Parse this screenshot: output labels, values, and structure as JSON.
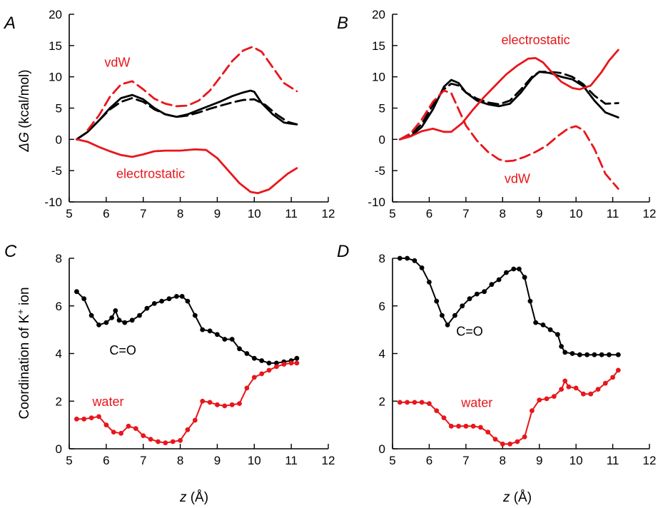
{
  "colors": {
    "black": "#000000",
    "red": "#e8161b"
  },
  "figure": {
    "ylabel_top": "ΔG (kcal/mol)",
    "ylabel_top_symbol": "ΔG",
    "ylabel_top_unit": " (kcal/mol)",
    "ylabel_bottom": "Coordination of K⁺ ion",
    "ylabel_bottom_main": "Coordination of K",
    "ylabel_bottom_sup": "+",
    "ylabel_bottom_tail": " ion",
    "xlabel": "z (Å)",
    "xlabel_symbol": "z",
    "xlabel_unit": " (Å)"
  },
  "chart_data": [
    {
      "panel": "A",
      "type": "line",
      "xlim": [
        5,
        12
      ],
      "ylim": [
        -10,
        20
      ],
      "xticks": [
        5,
        6,
        7,
        8,
        9,
        10,
        11,
        12
      ],
      "yticks": [
        -10,
        -5,
        0,
        5,
        10,
        15,
        20
      ],
      "annotations": [
        {
          "text": "vdW",
          "x": 6.3,
          "y": 11.6,
          "color": "#e8161b"
        },
        {
          "text": "electrostatic",
          "x": 7.2,
          "y": -6.2,
          "color": "#e8161b"
        }
      ],
      "series": [
        {
          "color": "#000000",
          "dash": "solid",
          "x": [
            5.2,
            5.5,
            5.8,
            6.1,
            6.4,
            6.7,
            7.0,
            7.3,
            7.6,
            7.9,
            8.2,
            8.5,
            8.8,
            9.1,
            9.4,
            9.7,
            9.9,
            10.0,
            10.2,
            10.5,
            10.8,
            11.0,
            11.15
          ],
          "y": [
            0,
            1.2,
            3.0,
            5.0,
            6.6,
            7.1,
            6.4,
            5.0,
            4.0,
            3.6,
            4.0,
            4.7,
            5.4,
            6.1,
            6.9,
            7.5,
            7.8,
            7.6,
            5.8,
            4.0,
            2.7,
            2.5,
            2.4
          ]
        },
        {
          "color": "#000000",
          "dash": "dashed",
          "x": [
            5.2,
            5.5,
            5.8,
            6.1,
            6.4,
            6.7,
            7.0,
            7.3,
            7.6,
            7.9,
            8.2,
            8.5,
            8.8,
            9.1,
            9.4,
            9.7,
            10.0,
            10.3,
            10.6,
            10.9,
            11.15
          ],
          "y": [
            0,
            1.2,
            3.0,
            4.8,
            6.0,
            6.6,
            6.0,
            4.8,
            4.0,
            3.6,
            3.8,
            4.3,
            4.9,
            5.4,
            5.9,
            6.3,
            6.4,
            5.5,
            4.0,
            2.8,
            2.4
          ]
        },
        {
          "color": "#e8161b",
          "dash": "dashed",
          "x": [
            5.5,
            5.8,
            6.1,
            6.4,
            6.7,
            7.0,
            7.3,
            7.6,
            7.9,
            8.2,
            8.5,
            8.8,
            9.1,
            9.4,
            9.7,
            9.95,
            10.2,
            10.5,
            10.8,
            11.15
          ],
          "y": [
            1.5,
            3.8,
            6.8,
            8.8,
            9.3,
            8.0,
            6.5,
            5.7,
            5.3,
            5.4,
            6.2,
            7.8,
            10.1,
            12.5,
            14.2,
            14.8,
            14.0,
            11.5,
            9.0,
            7.7
          ]
        },
        {
          "color": "#e8161b",
          "dash": "solid",
          "x": [
            5.2,
            5.5,
            5.8,
            6.1,
            6.4,
            6.7,
            7.0,
            7.3,
            7.6,
            8.0,
            8.4,
            8.7,
            9.0,
            9.3,
            9.6,
            9.9,
            10.1,
            10.4,
            10.7,
            10.9,
            11.15
          ],
          "y": [
            0,
            -0.4,
            -1.2,
            -1.9,
            -2.5,
            -2.8,
            -2.4,
            -1.9,
            -1.8,
            -1.8,
            -1.6,
            -1.7,
            -3.0,
            -5.0,
            -7.0,
            -8.4,
            -8.6,
            -8.0,
            -6.5,
            -5.5,
            -4.6
          ]
        }
      ]
    },
    {
      "panel": "B",
      "type": "line",
      "xlim": [
        5,
        12
      ],
      "ylim": [
        -10,
        20
      ],
      "xticks": [
        5,
        6,
        7,
        8,
        9,
        10,
        11,
        12
      ],
      "yticks": [
        -10,
        -5,
        0,
        5,
        10,
        15,
        20
      ],
      "annotations": [
        {
          "text": "electrostatic",
          "x": 8.9,
          "y": 15.2,
          "color": "#e8161b"
        },
        {
          "text": "vdW",
          "x": 8.4,
          "y": -7.0,
          "color": "#e8161b"
        }
      ],
      "series": [
        {
          "color": "#000000",
          "dash": "solid",
          "x": [
            5.2,
            5.5,
            5.8,
            6.1,
            6.4,
            6.6,
            6.8,
            7.0,
            7.3,
            7.6,
            7.9,
            8.2,
            8.5,
            8.8,
            9.0,
            9.3,
            9.6,
            9.9,
            10.2,
            10.5,
            10.8,
            11.15
          ],
          "y": [
            0,
            0.5,
            2.0,
            4.8,
            8.4,
            9.5,
            9.0,
            7.5,
            6.2,
            5.6,
            5.3,
            5.7,
            7.5,
            9.8,
            10.8,
            10.6,
            10.0,
            9.6,
            8.5,
            6.2,
            4.3,
            3.5
          ]
        },
        {
          "color": "#000000",
          "dash": "dashed",
          "x": [
            5.2,
            5.5,
            5.8,
            6.1,
            6.4,
            6.6,
            6.8,
            7.0,
            7.3,
            7.6,
            7.9,
            8.2,
            8.5,
            8.8,
            9.0,
            9.3,
            9.6,
            9.9,
            10.2,
            10.5,
            10.8,
            11.15
          ],
          "y": [
            0,
            0.8,
            2.5,
            5.5,
            8.0,
            8.9,
            8.6,
            7.5,
            6.5,
            5.9,
            5.6,
            6.2,
            8.0,
            10.0,
            10.8,
            10.8,
            10.6,
            10.0,
            8.8,
            7.0,
            5.7,
            5.8
          ]
        },
        {
          "color": "#e8161b",
          "dash": "solid",
          "x": [
            5.2,
            5.5,
            5.8,
            6.1,
            6.4,
            6.6,
            6.9,
            7.2,
            7.5,
            7.8,
            8.1,
            8.4,
            8.7,
            8.9,
            9.1,
            9.3,
            9.6,
            9.9,
            10.1,
            10.4,
            10.7,
            10.9,
            11.15
          ],
          "y": [
            0,
            0.5,
            1.3,
            1.7,
            1.2,
            1.2,
            2.6,
            4.8,
            6.8,
            8.6,
            10.4,
            11.8,
            12.9,
            13.0,
            12.3,
            11.0,
            9.2,
            8.2,
            8.0,
            8.6,
            10.8,
            12.6,
            14.3
          ]
        },
        {
          "color": "#e8161b",
          "dash": "dashed",
          "x": [
            5.2,
            5.5,
            5.8,
            6.1,
            6.4,
            6.6,
            6.8,
            7.0,
            7.3,
            7.6,
            7.9,
            8.1,
            8.3,
            8.6,
            8.9,
            9.2,
            9.5,
            9.8,
            10.0,
            10.2,
            10.5,
            10.8,
            11.15
          ],
          "y": [
            0,
            1.0,
            3.2,
            6.0,
            7.8,
            7.4,
            4.8,
            2.2,
            -0.2,
            -2.0,
            -3.2,
            -3.5,
            -3.4,
            -2.8,
            -2.0,
            -1.0,
            0.5,
            1.8,
            2.1,
            1.5,
            -1.5,
            -5.5,
            -7.9
          ]
        }
      ]
    },
    {
      "panel": "C",
      "type": "scatter",
      "xlim": [
        5,
        12
      ],
      "ylim": [
        0,
        8
      ],
      "xticks": [
        5,
        6,
        7,
        8,
        9,
        10,
        11,
        12
      ],
      "yticks": [
        0,
        2,
        4,
        6,
        8
      ],
      "annotations": [
        {
          "text": "C=O",
          "x": 6.45,
          "y": 3.95,
          "color": "#000000"
        },
        {
          "text": "water",
          "x": 6.05,
          "y": 1.8,
          "color": "#e8161b"
        }
      ],
      "series": [
        {
          "name": "C=O",
          "color": "#000000",
          "x": [
            5.2,
            5.4,
            5.6,
            5.8,
            6.0,
            6.15,
            6.25,
            6.35,
            6.5,
            6.7,
            6.9,
            7.1,
            7.3,
            7.5,
            7.7,
            7.9,
            8.05,
            8.2,
            8.4,
            8.6,
            8.8,
            9.0,
            9.2,
            9.4,
            9.6,
            9.8,
            10.0,
            10.2,
            10.4,
            10.6,
            10.8,
            11.0,
            11.15
          ],
          "y": [
            6.6,
            6.3,
            5.6,
            5.2,
            5.3,
            5.5,
            5.8,
            5.4,
            5.3,
            5.4,
            5.6,
            5.9,
            6.1,
            6.2,
            6.3,
            6.4,
            6.4,
            6.2,
            5.6,
            5.0,
            4.95,
            4.8,
            4.6,
            4.6,
            4.2,
            4.0,
            3.8,
            3.7,
            3.6,
            3.6,
            3.65,
            3.7,
            3.8
          ]
        },
        {
          "name": "water",
          "color": "#e8161b",
          "x": [
            5.2,
            5.4,
            5.6,
            5.8,
            6.0,
            6.2,
            6.4,
            6.6,
            6.8,
            7.0,
            7.2,
            7.4,
            7.6,
            7.8,
            8.0,
            8.2,
            8.4,
            8.6,
            8.8,
            9.0,
            9.2,
            9.4,
            9.6,
            9.8,
            10.0,
            10.2,
            10.4,
            10.6,
            10.8,
            11.0,
            11.15
          ],
          "y": [
            1.25,
            1.25,
            1.3,
            1.35,
            1.0,
            0.7,
            0.65,
            0.95,
            0.85,
            0.55,
            0.4,
            0.3,
            0.25,
            0.3,
            0.35,
            0.8,
            1.2,
            2.0,
            1.95,
            1.85,
            1.8,
            1.85,
            1.9,
            2.55,
            3.0,
            3.15,
            3.3,
            3.45,
            3.55,
            3.6,
            3.6
          ]
        }
      ]
    },
    {
      "panel": "D",
      "type": "scatter",
      "xlim": [
        5,
        12
      ],
      "ylim": [
        0,
        8
      ],
      "xticks": [
        5,
        6,
        7,
        8,
        9,
        10,
        11,
        12
      ],
      "yticks": [
        0,
        2,
        4,
        6,
        8
      ],
      "annotations": [
        {
          "text": "C=O",
          "x": 7.1,
          "y": 4.75,
          "color": "#000000"
        },
        {
          "text": "water",
          "x": 7.3,
          "y": 1.75,
          "color": "#e8161b"
        }
      ],
      "series": [
        {
          "name": "C=O",
          "color": "#000000",
          "x": [
            5.2,
            5.4,
            5.6,
            5.8,
            6.0,
            6.2,
            6.35,
            6.5,
            6.7,
            6.9,
            7.1,
            7.3,
            7.5,
            7.7,
            7.9,
            8.1,
            8.3,
            8.45,
            8.6,
            8.75,
            8.9,
            9.1,
            9.3,
            9.5,
            9.6,
            9.7,
            9.9,
            10.1,
            10.3,
            10.5,
            10.7,
            10.9,
            11.15
          ],
          "y": [
            8.0,
            8.0,
            7.9,
            7.6,
            7.0,
            6.2,
            5.6,
            5.2,
            5.6,
            6.0,
            6.3,
            6.5,
            6.6,
            6.9,
            7.1,
            7.4,
            7.55,
            7.55,
            7.2,
            6.2,
            5.3,
            5.2,
            5.0,
            4.8,
            4.3,
            4.05,
            4.0,
            3.95,
            3.95,
            3.95,
            3.95,
            3.95,
            3.95
          ]
        },
        {
          "name": "water",
          "color": "#e8161b",
          "x": [
            5.2,
            5.4,
            5.6,
            5.8,
            6.0,
            6.2,
            6.4,
            6.6,
            6.8,
            7.0,
            7.2,
            7.4,
            7.6,
            7.8,
            8.0,
            8.2,
            8.4,
            8.6,
            8.8,
            9.0,
            9.2,
            9.4,
            9.6,
            9.7,
            9.8,
            10.0,
            10.2,
            10.4,
            10.6,
            10.8,
            11.0,
            11.15
          ],
          "y": [
            1.95,
            1.95,
            1.95,
            1.95,
            1.9,
            1.6,
            1.3,
            0.95,
            0.95,
            0.95,
            0.95,
            0.9,
            0.7,
            0.4,
            0.2,
            0.2,
            0.3,
            0.5,
            1.6,
            2.05,
            2.1,
            2.2,
            2.5,
            2.85,
            2.6,
            2.55,
            2.3,
            2.3,
            2.5,
            2.75,
            3.0,
            3.3
          ]
        }
      ]
    }
  ]
}
